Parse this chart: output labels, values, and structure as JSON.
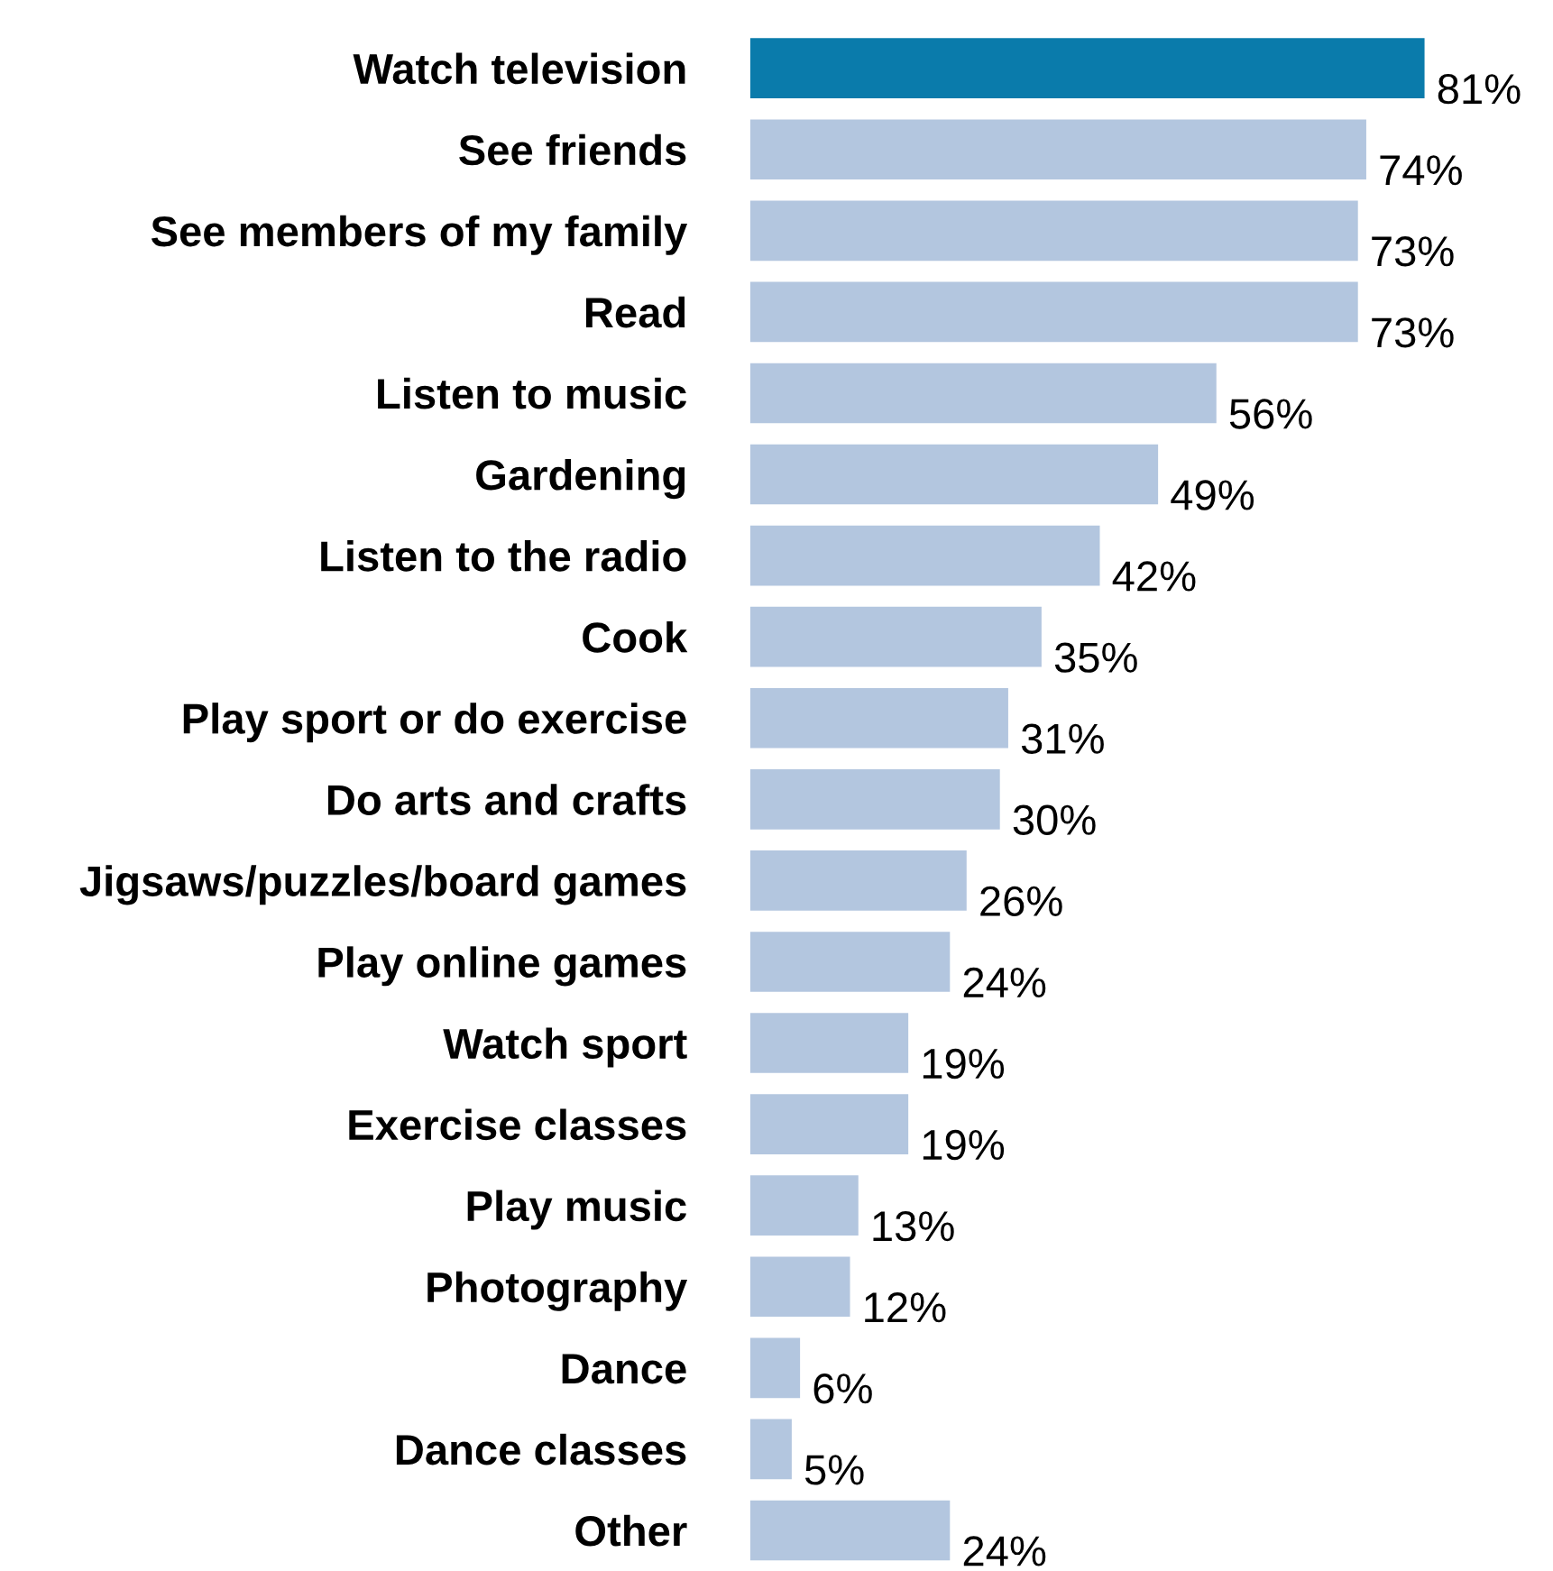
{
  "chart_data": {
    "type": "bar",
    "orientation": "horizontal",
    "categories": [
      "Watch television",
      "See friends",
      "See members of my family",
      "Read",
      "Listen to music",
      "Gardening",
      "Listen to the radio",
      "Cook",
      "Play sport or do exercise",
      "Do arts and crafts",
      "Jigsaws/puzzles/board games",
      "Play online games",
      "Watch sport",
      "Exercise classes",
      "Play music",
      "Photography",
      "Dance",
      "Dance classes",
      "Other"
    ],
    "values": [
      81,
      74,
      73,
      73,
      56,
      49,
      42,
      35,
      31,
      30,
      26,
      24,
      19,
      19,
      13,
      12,
      6,
      5,
      24
    ],
    "value_labels": [
      "81%",
      "74%",
      "73%",
      "73%",
      "56%",
      "49%",
      "42%",
      "35%",
      "31%",
      "30%",
      "26%",
      "24%",
      "19%",
      "19%",
      "13%",
      "12%",
      "6%",
      "5%",
      "24%"
    ],
    "colors": [
      "#0a7bab",
      "#b3c6df",
      "#b3c6df",
      "#b3c6df",
      "#b3c6df",
      "#b3c6df",
      "#b3c6df",
      "#b3c6df",
      "#b3c6df",
      "#b3c6df",
      "#b3c6df",
      "#b3c6df",
      "#b3c6df",
      "#b3c6df",
      "#b3c6df",
      "#b3c6df",
      "#b3c6df",
      "#b3c6df",
      "#b3c6df"
    ],
    "tick_labels": "y",
    "grid": false,
    "legend": false
  }
}
